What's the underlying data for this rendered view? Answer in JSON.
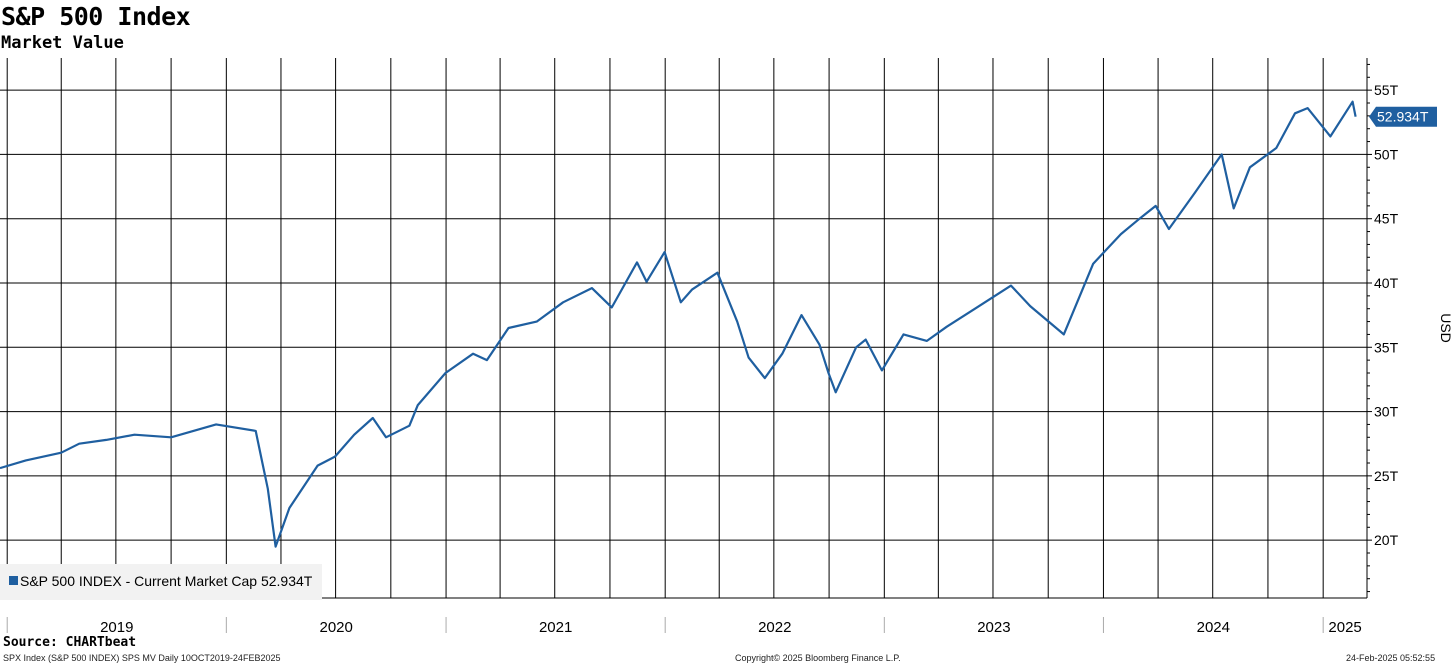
{
  "chart_data": {
    "type": "line",
    "title": "S&P 500 Index",
    "subtitle": "Market Value",
    "ylabel": "USD",
    "y_unit_suffix": "T",
    "ylim": [
      15.5,
      57.5
    ],
    "yticks": [
      20,
      25,
      30,
      35,
      40,
      45,
      50,
      55
    ],
    "ytick_labels": [
      "20T",
      "25T",
      "30T",
      "35T",
      "40T",
      "45T",
      "50T",
      "55T"
    ],
    "xlim": [
      "2018-12-20",
      "2025-03-15"
    ],
    "x_year_labels": [
      {
        "label": "2019",
        "year": 2019
      },
      {
        "label": "2020",
        "year": 2020
      },
      {
        "label": "2021",
        "year": 2021
      },
      {
        "label": "2022",
        "year": 2022
      },
      {
        "label": "2023",
        "year": 2023
      },
      {
        "label": "2024",
        "year": 2024
      },
      {
        "label": "2025",
        "year": 2025
      }
    ],
    "grid": true,
    "line_color": "#1f5fa0",
    "legend_position": "bottom-left",
    "legend_label": "S&P 500 INDEX - Current Market Cap 52.934T",
    "last_value_label": "52.934T",
    "series": [
      {
        "name": "S&P 500 INDEX - Current Market Cap",
        "x": [
          "2018-12-20",
          "2019-02-01",
          "2019-04-01",
          "2019-05-01",
          "2019-06-15",
          "2019-08-01",
          "2019-10-01",
          "2019-12-15",
          "2020-02-19",
          "2020-03-01",
          "2020-03-10",
          "2020-03-23",
          "2020-04-15",
          "2020-06-01",
          "2020-06-30",
          "2020-08-01",
          "2020-09-01",
          "2020-09-23",
          "2020-11-01",
          "2020-11-15",
          "2020-12-31",
          "2021-02-15",
          "2021-03-10",
          "2021-04-15",
          "2021-06-01",
          "2021-07-15",
          "2021-09-01",
          "2021-10-04",
          "2021-11-15",
          "2021-12-01",
          "2021-12-31",
          "2022-01-27",
          "2022-02-15",
          "2022-03-29",
          "2022-05-01",
          "2022-05-20",
          "2022-06-16",
          "2022-07-15",
          "2022-08-16",
          "2022-09-15",
          "2022-09-30",
          "2022-10-12",
          "2022-11-15",
          "2022-12-01",
          "2022-12-28",
          "2023-02-02",
          "2023-03-13",
          "2023-04-15",
          "2023-06-01",
          "2023-07-31",
          "2023-09-01",
          "2023-10-27",
          "2023-12-15",
          "2024-01-30",
          "2024-03-01",
          "2024-03-28",
          "2024-04-19",
          "2024-06-01",
          "2024-07-16",
          "2024-08-05",
          "2024-09-01",
          "2024-10-15",
          "2024-11-15",
          "2024-12-06",
          "2025-01-13",
          "2025-02-19",
          "2025-02-24"
        ],
        "values": [
          25.6,
          26.2,
          26.8,
          27.5,
          27.8,
          28.2,
          28.0,
          29.0,
          28.5,
          26.0,
          24.0,
          19.5,
          22.5,
          25.8,
          26.5,
          28.2,
          29.5,
          28.0,
          28.9,
          30.5,
          33.0,
          34.5,
          34.0,
          36.5,
          37.0,
          38.5,
          39.6,
          38.1,
          41.6,
          40.1,
          42.4,
          38.5,
          39.5,
          40.8,
          37.0,
          34.2,
          32.6,
          34.5,
          37.5,
          35.2,
          33.0,
          31.5,
          35.0,
          35.6,
          33.2,
          36.0,
          35.5,
          36.6,
          38.0,
          39.8,
          38.2,
          36.0,
          41.5,
          43.8,
          45.0,
          46.0,
          44.2,
          47.0,
          50.0,
          45.8,
          49.0,
          50.5,
          53.2,
          53.6,
          51.4,
          54.1,
          52.934
        ]
      }
    ],
    "source": "Source: CHARTbeat",
    "footer_left": "SPX Index (S&P 500 INDEX) SPS MV  Daily 10OCT2019-24FEB2025",
    "footer_center": "Copyright© 2025 Bloomberg Finance L.P.",
    "footer_right": "24-Feb-2025 05:52:55"
  }
}
